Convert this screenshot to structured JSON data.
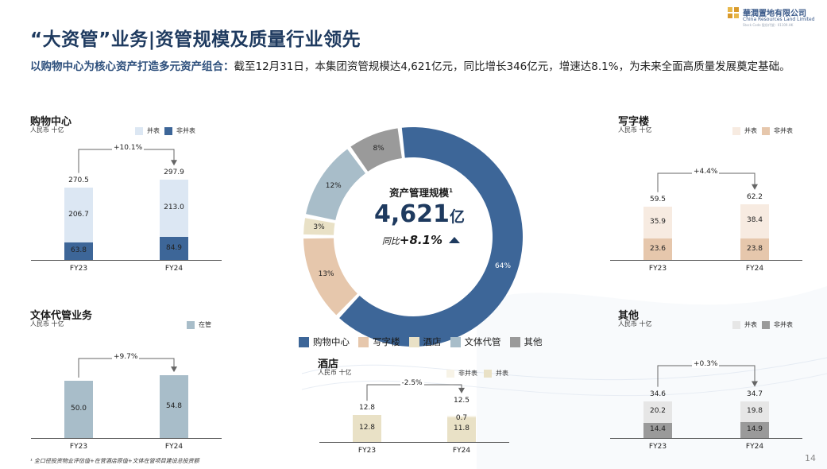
{
  "header": {
    "title": "“大资管”业务|资管规模及质量行业领先",
    "subtitle_highlight": "以购物中心为核心资产打造多元资产组合：",
    "subtitle_text": "截至12月31日，本集团资管规模达4,621亿元，同比增长346亿元，增速达8.1%，为未来全面高质量发展奠定基础。"
  },
  "logo": {
    "name_cn": "華潤置地有限公司",
    "name_en": "China Resources Land Limited",
    "stock_line": "Stock Code 股份代號 : 01109.HK"
  },
  "colors": {
    "mall_non": "#3d6698",
    "mall_con": "#dce7f3",
    "office_non": "#e6c7ac",
    "office_con": "#f7ebe1",
    "hotel": "#e9e1c6",
    "culture": "#a8bdc9",
    "other_non": "#9a9a9a",
    "other_con": "#e6e6e6",
    "arrow": "#666666",
    "title": "#1e3a5f"
  },
  "center": {
    "label": "资产管理规模",
    "sup": "1",
    "value": "4,621",
    "unit": "亿",
    "growth_prefix": "同比",
    "growth_value": "+8.1%",
    "trend_icon": "up-triangle-icon"
  },
  "legend": [
    "购物中心",
    "写字楼",
    "酒店",
    "文体代管",
    "其他"
  ],
  "footnote": "¹ 全口径投资物业评估值+在营酒店原值+文体在管项目建设总投资额",
  "page_number": "14",
  "chart_data": [
    {
      "type": "pie",
      "donut": true,
      "title": "资产管理规模",
      "slices": [
        {
          "name": "购物中心",
          "value": 64,
          "label": "64%",
          "color": "#3d6698"
        },
        {
          "name": "写字楼",
          "value": 13,
          "label": "13%",
          "color": "#e6c7ac"
        },
        {
          "name": "酒店",
          "value": 3,
          "label": "3%",
          "color": "#e9e1c6"
        },
        {
          "name": "文体代管",
          "value": 12,
          "label": "12%",
          "color": "#a8bdc9"
        },
        {
          "name": "其他",
          "value": 8,
          "label": "8%",
          "color": "#9a9a9a"
        }
      ]
    },
    {
      "type": "bar",
      "stacked": true,
      "id": "mall",
      "title": "购物中心",
      "unit": "人民币 十亿",
      "categories": [
        "FY23",
        "FY24"
      ],
      "series": [
        {
          "name": "非并表",
          "values": [
            63.8,
            84.9
          ],
          "color": "#3d6698"
        },
        {
          "name": "并表",
          "values": [
            206.7,
            213.0
          ],
          "color": "#dce7f3"
        }
      ],
      "totals": [
        "270.5",
        "297.9"
      ],
      "growth": "+10.1%"
    },
    {
      "type": "bar",
      "stacked": true,
      "id": "office",
      "title": "写字楼",
      "unit": "人民币 十亿",
      "categories": [
        "FY23",
        "FY24"
      ],
      "series": [
        {
          "name": "非并表",
          "values": [
            23.6,
            23.8
          ],
          "color": "#e6c7ac"
        },
        {
          "name": "并表",
          "values": [
            35.9,
            38.4
          ],
          "color": "#f7ebe1"
        }
      ],
      "totals": [
        "59.5",
        "62.2"
      ],
      "growth": "+4.4%"
    },
    {
      "type": "bar",
      "stacked": true,
      "id": "culture",
      "title": "文体代管业务",
      "unit": "人民币 十亿",
      "categories": [
        "FY23",
        "FY24"
      ],
      "series": [
        {
          "name": "在管",
          "values": [
            50.0,
            54.8
          ],
          "color": "#a8bdc9"
        }
      ],
      "totals": [],
      "growth": "+9.7%"
    },
    {
      "type": "bar",
      "stacked": true,
      "id": "hotel",
      "title": "酒店",
      "unit": "人民币 十亿",
      "categories": [
        "FY23",
        "FY24"
      ],
      "series": [
        {
          "name": "并表",
          "values": [
            12.8,
            11.8
          ],
          "color": "#e9e1c6"
        },
        {
          "name": "非并表",
          "values": [
            0.0,
            0.7
          ],
          "color": "#f7f3e7"
        }
      ],
      "totals": [
        "12.8",
        "12.5"
      ],
      "growth": "-2.5%"
    },
    {
      "type": "bar",
      "stacked": true,
      "id": "other",
      "title": "其他",
      "unit": "人民币 十亿",
      "categories": [
        "FY23",
        "FY24"
      ],
      "series": [
        {
          "name": "非并表",
          "values": [
            14.4,
            14.9
          ],
          "color": "#9a9a9a"
        },
        {
          "name": "并表",
          "values": [
            20.2,
            19.8
          ],
          "color": "#e6e6e6"
        }
      ],
      "totals": [
        "34.6",
        "34.7"
      ],
      "growth": "+0.3%"
    }
  ],
  "panel_legends": {
    "mall": [
      "并表",
      "非并表"
    ],
    "office": [
      "并表",
      "非并表"
    ],
    "culture": [
      "在管"
    ],
    "hotel": [
      "非并表",
      "并表"
    ],
    "other": [
      "并表",
      "非并表"
    ]
  }
}
